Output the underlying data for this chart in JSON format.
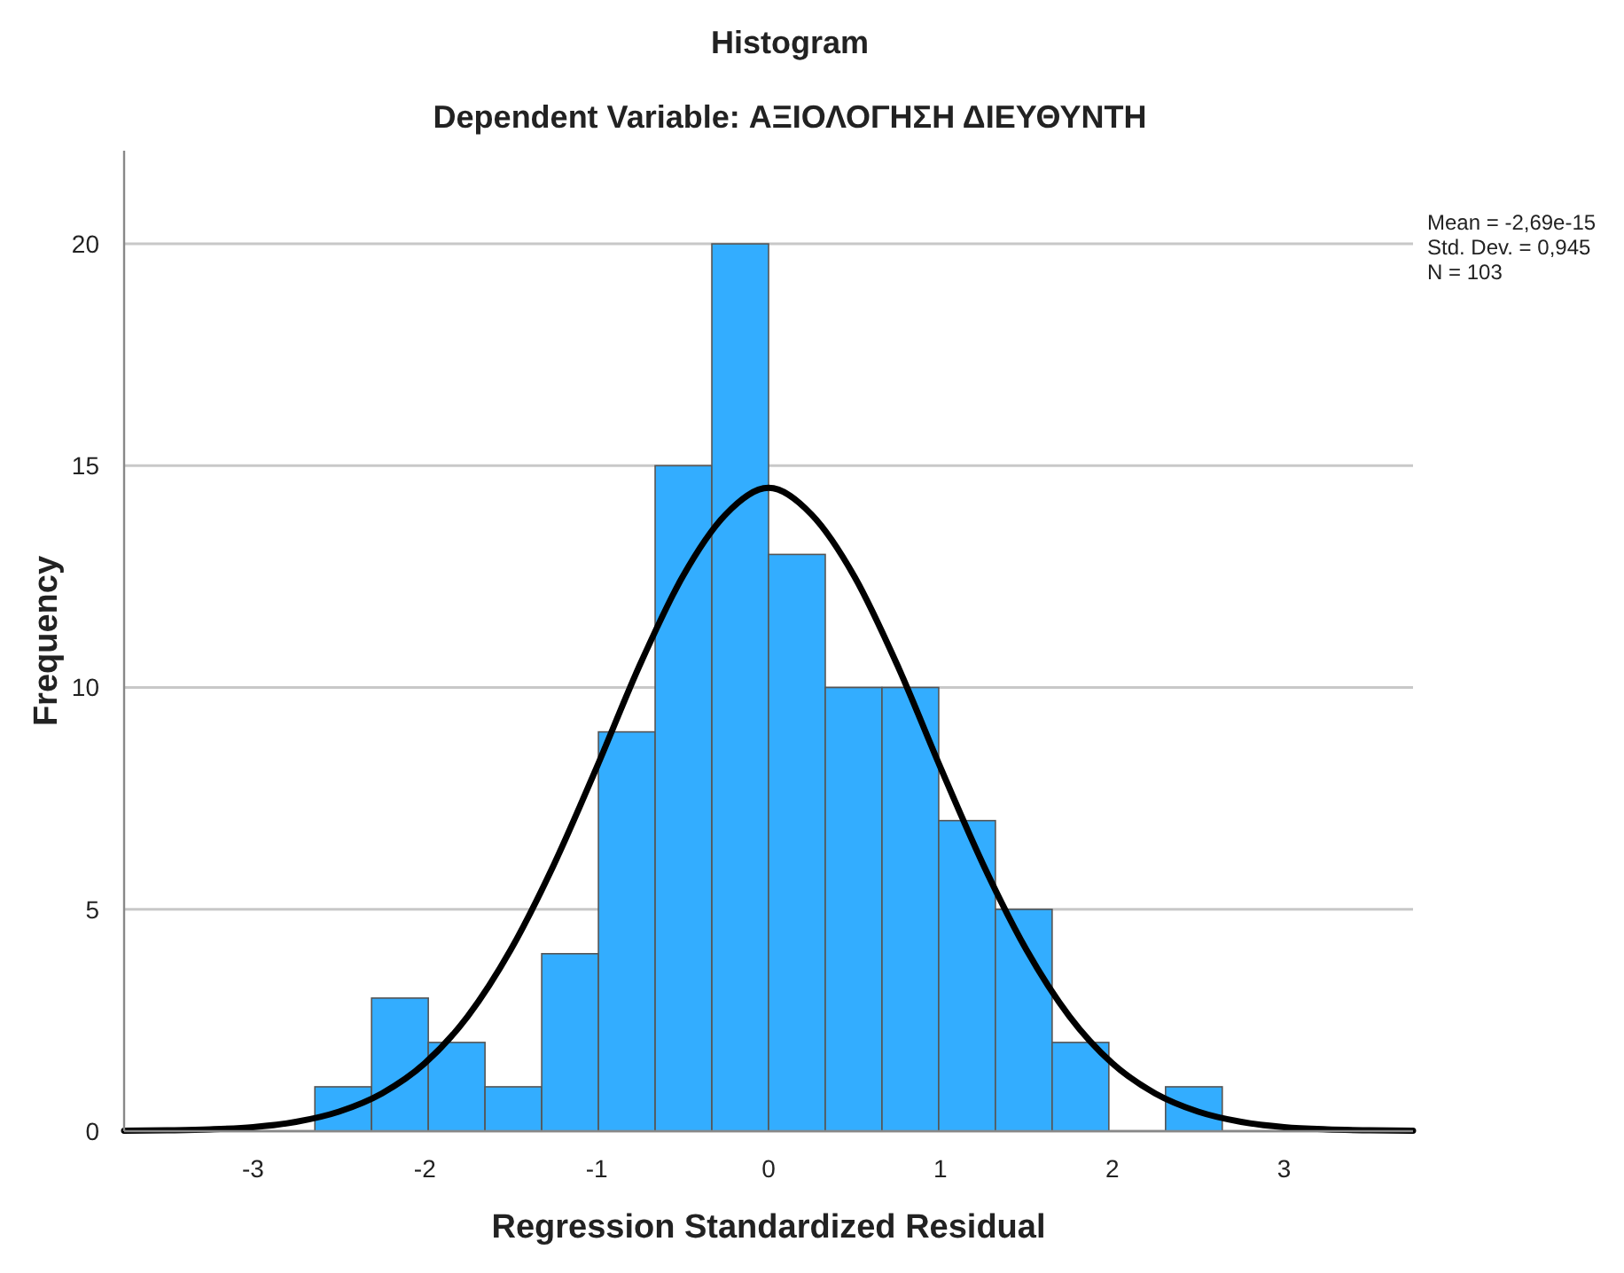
{
  "chart_data": {
    "type": "histogram",
    "title": "Histogram",
    "subtitle": "Dependent Variable: ΑΞΙΟΛΟΓΗΣΗ ΔΙΕΥΘΥΝΤΗ",
    "xlabel": "Regression Standardized Residual",
    "ylabel": "Frequency",
    "bins": [
      -2.64,
      -2.31,
      -1.98,
      -1.65,
      -1.32,
      -0.99,
      -0.66,
      -0.33,
      0,
      0.33,
      0.66,
      0.99,
      1.32,
      1.65,
      1.98,
      2.31,
      2.64
    ],
    "values": [
      1,
      3,
      2,
      1,
      4,
      9,
      15,
      20,
      13,
      10,
      10,
      7,
      5,
      2,
      0,
      1
    ],
    "color": "#33adff",
    "series": [
      {
        "type": "line",
        "color": "#000000",
        "x": [
          -3.75,
          -3.5,
          -3.25,
          -3,
          -2.75,
          -2.5,
          -2.25,
          -2,
          -1.75,
          -1.5,
          -1.25,
          -1,
          -0.75,
          -0.5,
          -0.25,
          0,
          0.25,
          0.5,
          0.75,
          1,
          1.25,
          1.5,
          1.75,
          2,
          2.25,
          2.5,
          2.75,
          3,
          3.25,
          3.5,
          3.75
        ],
        "values": [
          0.01,
          0.02,
          0.04,
          0.09,
          0.21,
          0.44,
          0.85,
          1.53,
          2.59,
          4.09,
          6.0,
          8.2,
          10.5,
          12.5,
          13.9,
          14.5,
          13.9,
          12.5,
          10.5,
          8.2,
          6.0,
          4.09,
          2.59,
          1.53,
          0.85,
          0.44,
          0.21,
          0.09,
          0.04,
          0.02,
          0.01
        ]
      }
    ],
    "xlim": [
      -3.75,
      3.75
    ],
    "xticks": [
      -3,
      -2,
      -1,
      0,
      1,
      2,
      3
    ],
    "ylim": [
      0,
      22.1
    ],
    "yticks": [
      0,
      5,
      10,
      15,
      20
    ],
    "grid": "y",
    "legend": false,
    "annotations": [
      "Mean = -2,69e-15",
      "Std. Dev. = 0,945",
      "N = 103"
    ]
  }
}
